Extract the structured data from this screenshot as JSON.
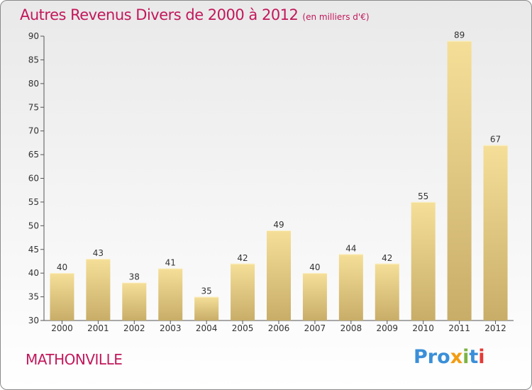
{
  "chart_data": {
    "type": "bar",
    "title": "Autres Revenus Divers de 2000 à 2012",
    "subtitle": "(en milliers d'€)",
    "categories": [
      "2000",
      "2001",
      "2002",
      "2003",
      "2004",
      "2005",
      "2006",
      "2007",
      "2008",
      "2009",
      "2010",
      "2011",
      "2012"
    ],
    "values": [
      40,
      43,
      38,
      41,
      35,
      42,
      49,
      40,
      44,
      42,
      55,
      89,
      67
    ],
    "ylim": [
      30,
      90
    ],
    "yticks": [
      30,
      35,
      40,
      45,
      50,
      55,
      60,
      65,
      70,
      75,
      80,
      85,
      90
    ],
    "xlabel": "",
    "ylabel": "",
    "grid": false,
    "colors": {
      "bar_light": "#f5df98",
      "bar_dark": "#c8ad68",
      "text_accent": "#c2185b"
    }
  },
  "footer": {
    "place": "MATHONVILLE",
    "brand_letters": [
      {
        "char": "P",
        "color": "#3a8fd8"
      },
      {
        "char": "r",
        "color": "#3a8fd8"
      },
      {
        "char": "o",
        "color": "#3a8fd8"
      },
      {
        "char": "x",
        "color": "#f39c12"
      },
      {
        "char": "i",
        "color": "#7cb342"
      },
      {
        "char": "t",
        "color": "#3a8fd8"
      },
      {
        "char": "i",
        "color": "#e53935"
      }
    ]
  }
}
